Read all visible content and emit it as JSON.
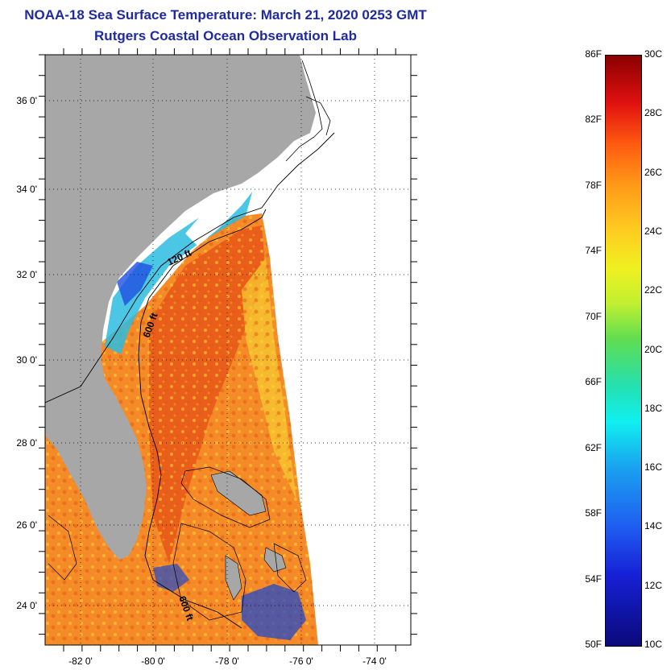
{
  "header": {
    "title": "NOAA-18 Sea Surface Temperature:  March 21, 2020 0253 GMT",
    "subtitle": "Rutgers Coastal Ocean Observation Lab"
  },
  "map": {
    "lat_labels": [
      "36 0'",
      "34 0'",
      "32 0'",
      "30 0'",
      "28 0'",
      "26 0'",
      "24 0'"
    ],
    "lon_labels": [
      "-82 0'",
      "-80 0'",
      "-78 0'",
      "-76 0'",
      "-74 0'"
    ],
    "isobath_labels": [
      "120 ft",
      "600 ft",
      "600 ft"
    ],
    "colors": {
      "land": "#a7a7a7",
      "cloud": "#ffffff",
      "warm_water": "#f07a22",
      "cool_water": "#2a7af0"
    }
  },
  "colorbar": {
    "fahrenheit_labels": [
      "86F",
      "82F",
      "78F",
      "74F",
      "70F",
      "66F",
      "62F",
      "58F",
      "54F",
      "50F"
    ],
    "celsius_labels": [
      "30C",
      "28C",
      "26C",
      "24C",
      "22C",
      "20C",
      "18C",
      "16C",
      "14C",
      "12C",
      "10C"
    ],
    "range_f": [
      50,
      86
    ],
    "range_c": [
      10,
      30
    ]
  }
}
